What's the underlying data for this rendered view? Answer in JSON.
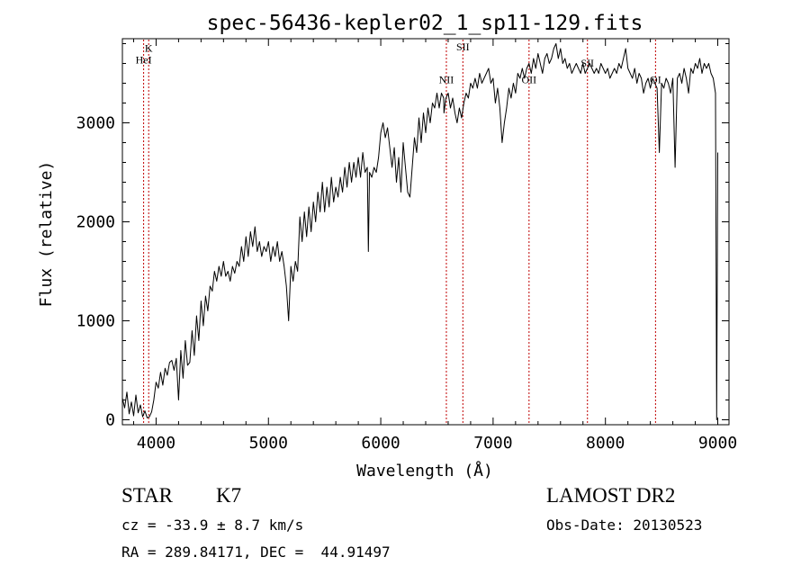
{
  "chart_data": {
    "type": "line",
    "title": "spec-56436-kepler02_1_sp11-129.fits",
    "xlabel": "Wavelength (Å)",
    "ylabel": "Flux (relative)",
    "xlim": [
      3700,
      9100
    ],
    "ylim": [
      -50,
      3850
    ],
    "xticks": [
      4000,
      5000,
      6000,
      7000,
      8000,
      9000
    ],
    "yticks": [
      0,
      1000,
      2000,
      3000
    ],
    "grid": false,
    "line_color": "#000000",
    "marker_color": "#c00000",
    "line_markers": [
      {
        "label": "K",
        "x": 3934,
        "label_y": 3720
      },
      {
        "label": "HeI",
        "x": 3889,
        "label_y": 3600
      },
      {
        "label": "NII",
        "x": 6584,
        "label_y": 3400
      },
      {
        "label": "SII",
        "x": 6731,
        "label_y": 3730
      },
      {
        "label": "OII",
        "x": 7320,
        "label_y": 3400
      },
      {
        "label": "SII",
        "x": 7840,
        "label_y": 3570
      },
      {
        "label": "OI",
        "x": 8446,
        "label_y": 3400
      }
    ],
    "series": [
      {
        "x": [
          3700,
          3720,
          3740,
          3760,
          3780,
          3800,
          3820,
          3840,
          3860,
          3880,
          3900,
          3920,
          3940,
          3960,
          3980,
          4000,
          4020,
          4040,
          4060,
          4080,
          4100,
          4120,
          4140,
          4160,
          4180,
          4200,
          4220,
          4240,
          4260,
          4280,
          4300,
          4320,
          4340,
          4360,
          4380,
          4400,
          4420,
          4440,
          4460,
          4480,
          4500,
          4520,
          4540,
          4560,
          4580,
          4600,
          4620,
          4640,
          4660,
          4680,
          4700,
          4720,
          4740,
          4760,
          4780,
          4800,
          4820,
          4840,
          4860,
          4880,
          4900,
          4920,
          4940,
          4960,
          4980,
          5000,
          5020,
          5040,
          5060,
          5080,
          5100,
          5120,
          5140,
          5160,
          5180,
          5200,
          5220,
          5240,
          5260,
          5280,
          5300,
          5320,
          5340,
          5360,
          5380,
          5400,
          5420,
          5440,
          5460,
          5480,
          5500,
          5520,
          5540,
          5560,
          5580,
          5600,
          5620,
          5640,
          5660,
          5680,
          5700,
          5720,
          5740,
          5760,
          5780,
          5800,
          5820,
          5840,
          5860,
          5880,
          5890,
          5900,
          5920,
          5940,
          5960,
          5980,
          6000,
          6020,
          6040,
          6060,
          6080,
          6100,
          6120,
          6140,
          6160,
          6180,
          6200,
          6220,
          6240,
          6260,
          6280,
          6300,
          6320,
          6340,
          6360,
          6380,
          6400,
          6420,
          6440,
          6460,
          6480,
          6500,
          6520,
          6540,
          6560,
          6563,
          6580,
          6600,
          6620,
          6640,
          6660,
          6680,
          6700,
          6720,
          6740,
          6760,
          6780,
          6800,
          6820,
          6840,
          6860,
          6880,
          6900,
          6920,
          6940,
          6960,
          6980,
          7000,
          7020,
          7040,
          7060,
          7080,
          7100,
          7120,
          7140,
          7160,
          7180,
          7200,
          7220,
          7240,
          7260,
          7280,
          7300,
          7320,
          7340,
          7360,
          7380,
          7400,
          7420,
          7440,
          7460,
          7480,
          7500,
          7520,
          7540,
          7560,
          7580,
          7600,
          7620,
          7640,
          7660,
          7680,
          7700,
          7720,
          7740,
          7760,
          7780,
          7800,
          7820,
          7840,
          7860,
          7880,
          7900,
          7920,
          7940,
          7960,
          7980,
          8000,
          8020,
          8040,
          8060,
          8080,
          8100,
          8120,
          8140,
          8160,
          8180,
          8200,
          8220,
          8240,
          8260,
          8280,
          8300,
          8320,
          8340,
          8360,
          8380,
          8400,
          8420,
          8440,
          8460,
          8480,
          8500,
          8520,
          8540,
          8560,
          8580,
          8600,
          8620,
          8640,
          8660,
          8680,
          8700,
          8720,
          8740,
          8760,
          8780,
          8800,
          8820,
          8840,
          8860,
          8880,
          8900,
          8920,
          8940,
          8960,
          8980,
          8990,
          9000
        ],
        "y": [
          220,
          120,
          280,
          60,
          180,
          40,
          250,
          70,
          150,
          30,
          90,
          20,
          30,
          80,
          200,
          380,
          320,
          480,
          350,
          520,
          450,
          580,
          600,
          500,
          620,
          200,
          700,
          420,
          800,
          550,
          580,
          900,
          650,
          1050,
          800,
          1200,
          950,
          1250,
          1100,
          1350,
          1300,
          1500,
          1400,
          1550,
          1450,
          1600,
          1450,
          1500,
          1400,
          1550,
          1480,
          1600,
          1550,
          1750,
          1600,
          1850,
          1650,
          1900,
          1750,
          1950,
          1700,
          1800,
          1650,
          1750,
          1700,
          1800,
          1600,
          1750,
          1650,
          1800,
          1600,
          1700,
          1550,
          1350,
          1000,
          1550,
          1400,
          1600,
          1500,
          2050,
          1800,
          2100,
          1850,
          2150,
          1900,
          2200,
          2000,
          2300,
          2100,
          2400,
          2100,
          2350,
          2150,
          2450,
          2200,
          2350,
          2250,
          2450,
          2300,
          2550,
          2350,
          2600,
          2400,
          2600,
          2450,
          2650,
          2450,
          2700,
          2500,
          2550,
          1700,
          2500,
          2450,
          2550,
          2500,
          2650,
          2900,
          3000,
          2850,
          2950,
          2750,
          2550,
          2750,
          2400,
          2650,
          2300,
          2800,
          2550,
          2300,
          2250,
          2550,
          2850,
          2700,
          3050,
          2800,
          3100,
          2900,
          3150,
          3000,
          3200,
          3150,
          3300,
          3150,
          3300,
          3250,
          3100,
          3250,
          3300,
          3150,
          3250,
          3100,
          3000,
          3150,
          3050,
          3200,
          3300,
          3250,
          3400,
          3350,
          3450,
          3350,
          3500,
          3400,
          3450,
          3500,
          3550,
          3400,
          3450,
          3200,
          3350,
          3150,
          2800,
          3000,
          3150,
          3350,
          3250,
          3400,
          3300,
          3500,
          3450,
          3550,
          3450,
          3550,
          3600,
          3500,
          3650,
          3550,
          3700,
          3600,
          3500,
          3650,
          3700,
          3600,
          3650,
          3750,
          3800,
          3650,
          3750,
          3600,
          3650,
          3550,
          3600,
          3500,
          3550,
          3600,
          3550,
          3500,
          3600,
          3500,
          3550,
          3600,
          3550,
          3500,
          3550,
          3500,
          3600,
          3550,
          3500,
          3550,
          3450,
          3500,
          3550,
          3500,
          3600,
          3550,
          3650,
          3750,
          3550,
          3500,
          3450,
          3550,
          3400,
          3500,
          3450,
          3300,
          3400,
          3450,
          3350,
          3450,
          3400,
          3350,
          2700,
          3400,
          3350,
          3450,
          3400,
          3300,
          3450,
          2550,
          3450,
          3500,
          3400,
          3550,
          3450,
          3300,
          3550,
          3500,
          3600,
          3550,
          3650,
          3500,
          3600,
          3550,
          3600,
          3500,
          3450,
          3300,
          0,
          2700
        ]
      }
    ]
  },
  "info": {
    "object_type": "STAR",
    "subclass": "K7",
    "survey": "LAMOST DR2",
    "velocity": "cz = -33.9 ± 8.7 km/s",
    "obs_date": "Obs-Date: 20130523",
    "coords": "RA = 289.84171, DEC =  44.91497"
  }
}
